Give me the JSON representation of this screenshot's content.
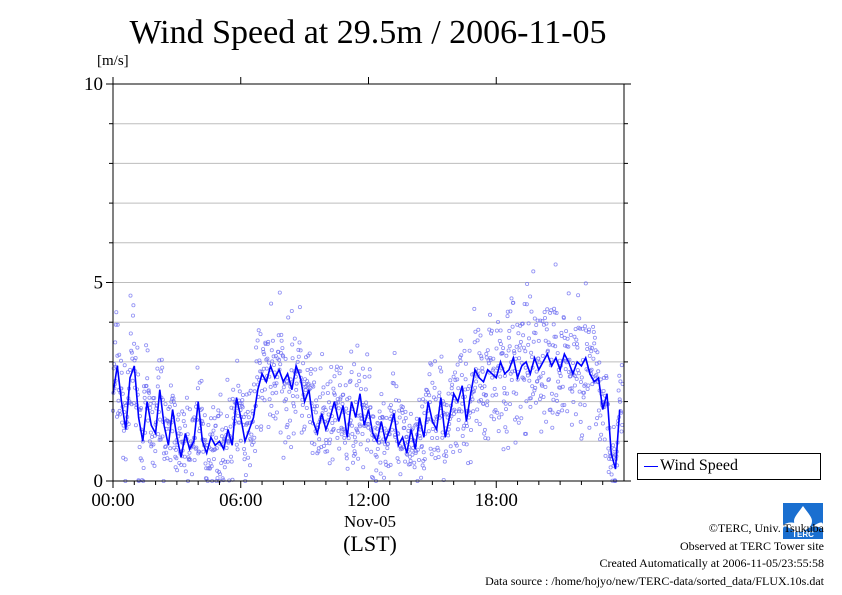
{
  "chart_data": {
    "type": "scatter",
    "title": "Wind Speed at 29.5m / 2006-11-05",
    "ylabel": "[m/s]",
    "ylim": [
      0,
      10
    ],
    "yticks": [
      "0",
      "5",
      "10"
    ],
    "xlim": [
      "00:00",
      "24:00"
    ],
    "xticks": [
      "00:00",
      "06:00",
      "12:00",
      "18:00"
    ],
    "x_date_label": "Nov-05",
    "x_unit_label": "(LST)",
    "grid": true,
    "legend_placement": "bottom-right, outside plot",
    "series": [
      {
        "name": "Wind Speed",
        "color": "#0000ff",
        "point_color": "#6a6af0",
        "mean_line": {
          "x_hours": [
            0.0,
            0.2,
            0.4,
            0.6,
            0.8,
            1.0,
            1.2,
            1.4,
            1.6,
            1.8,
            2.0,
            2.2,
            2.4,
            2.6,
            2.8,
            3.0,
            3.2,
            3.4,
            3.6,
            3.8,
            4.0,
            4.2,
            4.4,
            4.6,
            4.8,
            5.0,
            5.2,
            5.4,
            5.6,
            5.8,
            6.0,
            6.2,
            6.4,
            6.6,
            6.8,
            7.0,
            7.2,
            7.4,
            7.6,
            7.8,
            8.0,
            8.2,
            8.4,
            8.6,
            8.8,
            9.0,
            9.2,
            9.4,
            9.6,
            9.8,
            10.0,
            10.2,
            10.4,
            10.6,
            10.8,
            11.0,
            11.2,
            11.4,
            11.6,
            11.8,
            12.0,
            12.2,
            12.4,
            12.6,
            12.8,
            13.0,
            13.2,
            13.4,
            13.6,
            13.8,
            14.0,
            14.2,
            14.4,
            14.6,
            14.8,
            15.0,
            15.2,
            15.4,
            15.6,
            15.8,
            16.0,
            16.2,
            16.4,
            16.6,
            16.8,
            17.0,
            17.2,
            17.4,
            17.6,
            17.8,
            18.0,
            18.2,
            18.4,
            18.6,
            18.8,
            19.0,
            19.2,
            19.4,
            19.6,
            19.8,
            20.0,
            20.2,
            20.4,
            20.6,
            20.8,
            21.0,
            21.2,
            21.4,
            21.6,
            21.8,
            22.0,
            22.2,
            22.4,
            22.6,
            22.8,
            23.0,
            23.2,
            23.4,
            23.6,
            23.8
          ],
          "wind_speed": [
            2.2,
            2.9,
            2.0,
            1.3,
            2.6,
            2.9,
            1.6,
            1.0,
            2.0,
            1.4,
            1.2,
            2.3,
            1.4,
            0.9,
            1.8,
            1.1,
            0.6,
            1.2,
            0.8,
            1.0,
            2.0,
            1.0,
            0.7,
            1.1,
            0.9,
            1.0,
            0.8,
            1.3,
            0.9,
            2.1,
            1.6,
            1.0,
            1.3,
            1.6,
            2.3,
            2.7,
            2.5,
            2.9,
            2.6,
            2.8,
            2.5,
            2.7,
            2.3,
            2.9,
            2.6,
            2.0,
            2.3,
            1.5,
            1.2,
            1.7,
            1.3,
            1.6,
            2.0,
            1.5,
            1.9,
            1.1,
            2.0,
            1.6,
            2.2,
            1.4,
            1.8,
            1.2,
            1.0,
            1.5,
            1.0,
            1.3,
            1.7,
            0.9,
            1.1,
            0.7,
            1.3,
            0.8,
            1.6,
            1.1,
            2.0,
            1.5,
            1.3,
            2.1,
            1.1,
            1.6,
            2.2,
            2.0,
            2.4,
            1.5,
            2.2,
            2.8,
            2.6,
            2.5,
            2.8,
            2.7,
            2.6,
            3.0,
            2.7,
            2.8,
            3.1,
            2.6,
            2.9,
            3.0,
            2.7,
            3.1,
            2.8,
            3.0,
            3.2,
            2.9,
            3.1,
            2.8,
            3.2,
            3.0,
            2.7,
            3.0,
            2.9,
            3.1,
            2.7,
            2.5,
            2.6,
            1.8,
            2.2,
            0.7,
            0.3,
            1.8
          ]
        }
      }
    ]
  },
  "credits": {
    "copyright": "©TERC, Univ. Tsukuba",
    "observed": "Observed at TERC Tower site",
    "created": "Created Automatically at 2006-11-05/23:55:58",
    "source": "Data source : /home/hojyo/new/TERC-data/sorted_data/FLUX.10s.dat"
  },
  "logo": {
    "icon": "terc-logo-icon",
    "text": "TERC",
    "color": "#1a6fd0"
  }
}
